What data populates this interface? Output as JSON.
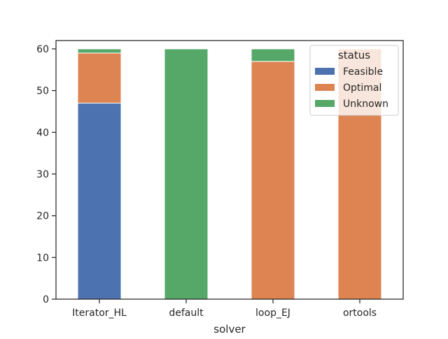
{
  "chart_data": {
    "type": "bar",
    "stacked": true,
    "title": "",
    "xlabel": "solver",
    "ylabel": "",
    "ylim": [
      0,
      62
    ],
    "yticks": [
      0,
      10,
      20,
      30,
      40,
      50,
      60
    ],
    "grid": false,
    "categories": [
      "Iterator_HL",
      "default",
      "loop_EJ",
      "ortools"
    ],
    "series": [
      {
        "name": "Feasible",
        "color": "#4c72b0",
        "values": [
          47,
          0,
          0,
          0
        ]
      },
      {
        "name": "Optimal",
        "color": "#dd8452",
        "values": [
          12,
          0,
          57,
          60
        ]
      },
      {
        "name": "Unknown",
        "color": "#55a868",
        "values": [
          1,
          60,
          3,
          0
        ]
      }
    ],
    "legend": {
      "title": "status",
      "placement": "top-right",
      "entries": [
        "Feasible",
        "Optimal",
        "Unknown"
      ]
    }
  }
}
